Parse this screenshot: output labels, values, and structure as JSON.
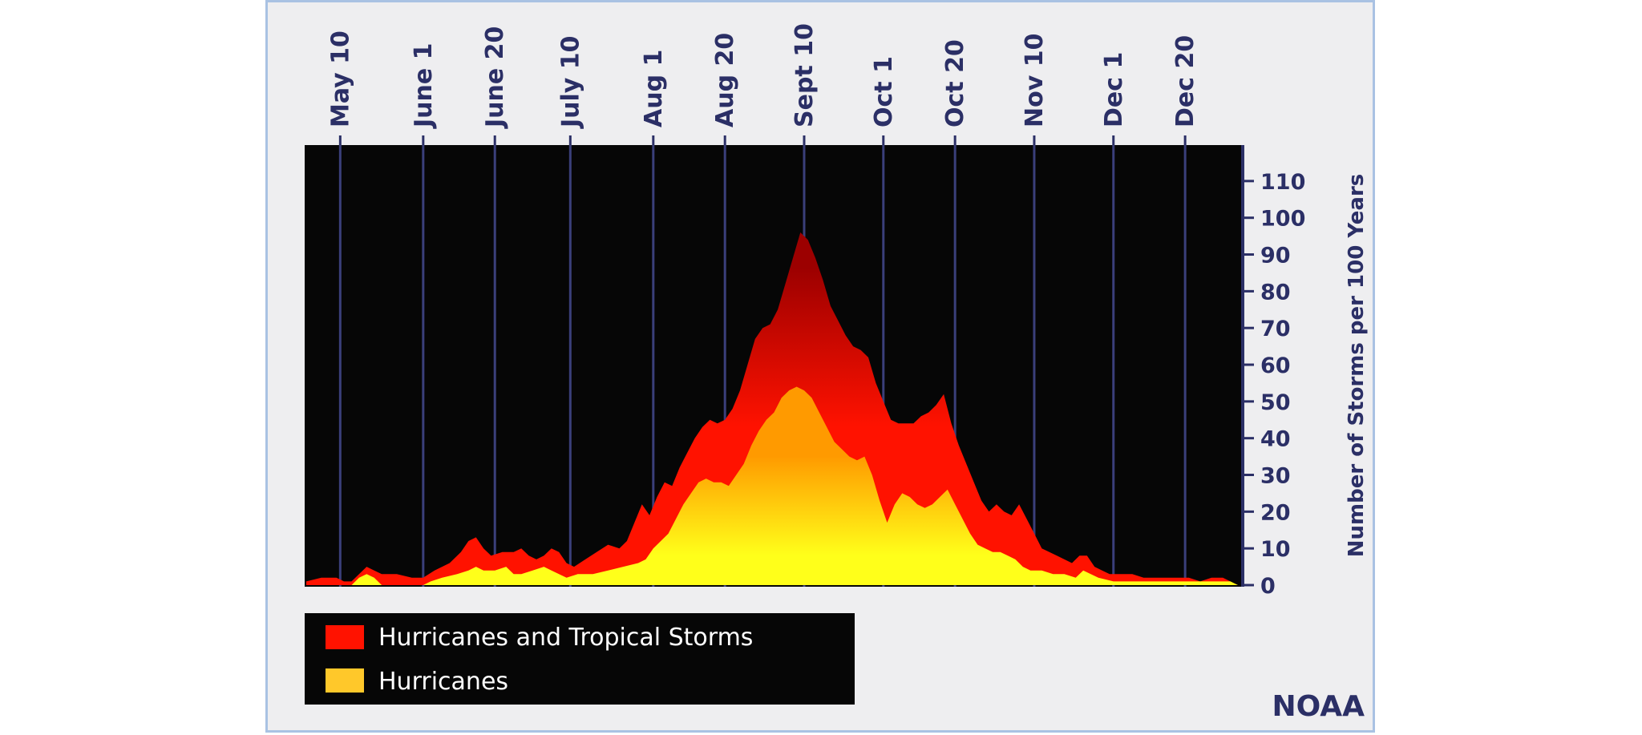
{
  "colors": {
    "frame_bg": "#eeeef0",
    "frame_border": "#a9c2e3",
    "plot_bg": "#060606",
    "gridline": "#3a3f7a",
    "axis": "#2b2f66",
    "tropical_storm_top": "#9c0000",
    "tropical_storm_bottom": "#ff1200",
    "hurricane_top": "#ff9a00",
    "hurricane_bottom": "#ffff1a"
  },
  "watermark": "NOAA",
  "chart_data": {
    "type": "area",
    "title": "",
    "xlabel": "",
    "ylabel": "Number of Storms per 100 Years",
    "ylim": [
      0,
      120
    ],
    "yticks": [
      0,
      10,
      20,
      30,
      40,
      50,
      60,
      70,
      80,
      90,
      100,
      110
    ],
    "xlim": [
      0,
      247
    ],
    "x_unit": "day of season (May 1 = 0)",
    "date_ticks": [
      {
        "label": "May 10",
        "day": 9
      },
      {
        "label": "June 1",
        "day": 31
      },
      {
        "label": "June 20",
        "day": 50
      },
      {
        "label": "July 10",
        "day": 70
      },
      {
        "label": "Aug 1",
        "day": 92
      },
      {
        "label": "Aug 20",
        "day": 111
      },
      {
        "label": "Sept 10",
        "day": 132
      },
      {
        "label": "Oct 1",
        "day": 153
      },
      {
        "label": "Oct 20",
        "day": 172
      },
      {
        "label": "Nov 10",
        "day": 193
      },
      {
        "label": "Dec 1",
        "day": 214
      },
      {
        "label": "Dec 20",
        "day": 233
      }
    ],
    "grid": true,
    "legend_position": "bottom-left",
    "series": [
      {
        "name": "Hurricanes and Tropical Storms",
        "points": [
          [
            0,
            1
          ],
          [
            4,
            2
          ],
          [
            8,
            2
          ],
          [
            10,
            1
          ],
          [
            12,
            1
          ],
          [
            14,
            3
          ],
          [
            16,
            5
          ],
          [
            18,
            4
          ],
          [
            20,
            3
          ],
          [
            24,
            3
          ],
          [
            28,
            2
          ],
          [
            31,
            2
          ],
          [
            34,
            4
          ],
          [
            38,
            6
          ],
          [
            41,
            9
          ],
          [
            43,
            12
          ],
          [
            45,
            13
          ],
          [
            47,
            10
          ],
          [
            49,
            8
          ],
          [
            52,
            9
          ],
          [
            55,
            9
          ],
          [
            57,
            10
          ],
          [
            59,
            8
          ],
          [
            61,
            7
          ],
          [
            63,
            8
          ],
          [
            65,
            10
          ],
          [
            67,
            9
          ],
          [
            69,
            6
          ],
          [
            71,
            5
          ],
          [
            74,
            7
          ],
          [
            77,
            9
          ],
          [
            80,
            11
          ],
          [
            83,
            10
          ],
          [
            85,
            12
          ],
          [
            87,
            17
          ],
          [
            89,
            22
          ],
          [
            91,
            19
          ],
          [
            93,
            24
          ],
          [
            95,
            28
          ],
          [
            97,
            27
          ],
          [
            99,
            32
          ],
          [
            101,
            36
          ],
          [
            103,
            40
          ],
          [
            105,
            43
          ],
          [
            107,
            45
          ],
          [
            109,
            44
          ],
          [
            111,
            45
          ],
          [
            113,
            48
          ],
          [
            115,
            53
          ],
          [
            117,
            60
          ],
          [
            119,
            67
          ],
          [
            121,
            70
          ],
          [
            123,
            71
          ],
          [
            125,
            75
          ],
          [
            127,
            82
          ],
          [
            129,
            89
          ],
          [
            131,
            96
          ],
          [
            133,
            94
          ],
          [
            135,
            89
          ],
          [
            137,
            83
          ],
          [
            139,
            76
          ],
          [
            141,
            72
          ],
          [
            143,
            68
          ],
          [
            145,
            65
          ],
          [
            147,
            64
          ],
          [
            149,
            62
          ],
          [
            151,
            55
          ],
          [
            153,
            50
          ],
          [
            155,
            45
          ],
          [
            157,
            44
          ],
          [
            159,
            44
          ],
          [
            161,
            44
          ],
          [
            163,
            46
          ],
          [
            165,
            47
          ],
          [
            167,
            49
          ],
          [
            169,
            52
          ],
          [
            171,
            44
          ],
          [
            173,
            38
          ],
          [
            175,
            33
          ],
          [
            177,
            28
          ],
          [
            179,
            23
          ],
          [
            181,
            20
          ],
          [
            183,
            22
          ],
          [
            185,
            20
          ],
          [
            187,
            19
          ],
          [
            189,
            22
          ],
          [
            191,
            18
          ],
          [
            193,
            14
          ],
          [
            195,
            10
          ],
          [
            197,
            9
          ],
          [
            199,
            8
          ],
          [
            201,
            7
          ],
          [
            203,
            6
          ],
          [
            205,
            8
          ],
          [
            207,
            8
          ],
          [
            209,
            5
          ],
          [
            211,
            4
          ],
          [
            213,
            3
          ],
          [
            216,
            3
          ],
          [
            219,
            3
          ],
          [
            222,
            2
          ],
          [
            225,
            2
          ],
          [
            228,
            2
          ],
          [
            231,
            2
          ],
          [
            234,
            2
          ],
          [
            237,
            1
          ],
          [
            240,
            2
          ],
          [
            243,
            2
          ],
          [
            245,
            1
          ],
          [
            247,
            0
          ]
        ]
      },
      {
        "name": "Hurricanes",
        "points": [
          [
            0,
            0
          ],
          [
            12,
            0
          ],
          [
            14,
            2
          ],
          [
            16,
            3
          ],
          [
            18,
            2
          ],
          [
            20,
            0
          ],
          [
            31,
            0
          ],
          [
            33,
            1
          ],
          [
            36,
            2
          ],
          [
            40,
            3
          ],
          [
            43,
            4
          ],
          [
            45,
            5
          ],
          [
            47,
            4
          ],
          [
            50,
            4
          ],
          [
            53,
            5
          ],
          [
            55,
            3
          ],
          [
            57,
            3
          ],
          [
            60,
            4
          ],
          [
            63,
            5
          ],
          [
            65,
            4
          ],
          [
            67,
            3
          ],
          [
            69,
            2
          ],
          [
            72,
            3
          ],
          [
            76,
            3
          ],
          [
            80,
            4
          ],
          [
            84,
            5
          ],
          [
            88,
            6
          ],
          [
            90,
            7
          ],
          [
            92,
            10
          ],
          [
            94,
            12
          ],
          [
            96,
            14
          ],
          [
            98,
            18
          ],
          [
            100,
            22
          ],
          [
            102,
            25
          ],
          [
            104,
            28
          ],
          [
            106,
            29
          ],
          [
            108,
            28
          ],
          [
            110,
            28
          ],
          [
            112,
            27
          ],
          [
            114,
            30
          ],
          [
            116,
            33
          ],
          [
            118,
            38
          ],
          [
            120,
            42
          ],
          [
            122,
            45
          ],
          [
            124,
            47
          ],
          [
            126,
            51
          ],
          [
            128,
            53
          ],
          [
            130,
            54
          ],
          [
            132,
            53
          ],
          [
            134,
            51
          ],
          [
            136,
            47
          ],
          [
            138,
            43
          ],
          [
            140,
            39
          ],
          [
            142,
            37
          ],
          [
            144,
            35
          ],
          [
            146,
            34
          ],
          [
            148,
            35
          ],
          [
            150,
            30
          ],
          [
            152,
            23
          ],
          [
            154,
            17
          ],
          [
            156,
            22
          ],
          [
            158,
            25
          ],
          [
            160,
            24
          ],
          [
            162,
            22
          ],
          [
            164,
            21
          ],
          [
            166,
            22
          ],
          [
            168,
            24
          ],
          [
            170,
            26
          ],
          [
            172,
            22
          ],
          [
            174,
            18
          ],
          [
            176,
            14
          ],
          [
            178,
            11
          ],
          [
            180,
            10
          ],
          [
            182,
            9
          ],
          [
            184,
            9
          ],
          [
            186,
            8
          ],
          [
            188,
            7
          ],
          [
            190,
            5
          ],
          [
            192,
            4
          ],
          [
            195,
            4
          ],
          [
            198,
            3
          ],
          [
            201,
            3
          ],
          [
            204,
            2
          ],
          [
            206,
            4
          ],
          [
            208,
            3
          ],
          [
            210,
            2
          ],
          [
            214,
            1
          ],
          [
            220,
            1
          ],
          [
            226,
            1
          ],
          [
            232,
            1
          ],
          [
            238,
            1
          ],
          [
            242,
            1
          ],
          [
            245,
            1
          ],
          [
            247,
            0
          ]
        ]
      }
    ]
  }
}
